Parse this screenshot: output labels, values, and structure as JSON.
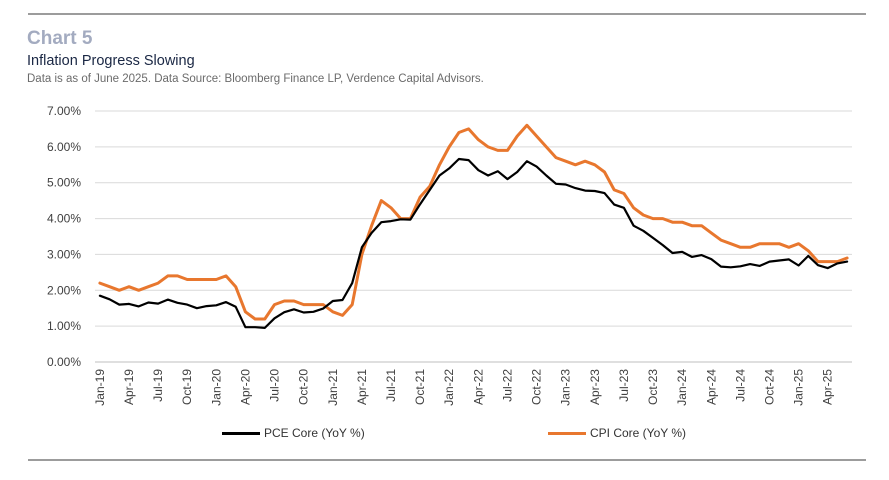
{
  "header": {
    "chart_number": "Chart 5",
    "title": "Inflation Progress Slowing",
    "subtitle": "Data is as of June 2025. Data Source: Bloomberg Finance LP, Verdence Capital Advisors."
  },
  "colors": {
    "pce": "#000000",
    "cpi": "#e8772e",
    "grid": "#d9d9d9",
    "axis_text": "#404040"
  },
  "chart_data": {
    "type": "line",
    "title": "",
    "xlabel": "",
    "ylabel": "",
    "ylim": [
      0,
      7
    ],
    "y_ticks": [
      "0.00%",
      "1.00%",
      "2.00%",
      "3.00%",
      "4.00%",
      "5.00%",
      "6.00%",
      "7.00%"
    ],
    "x_tick_labels": [
      "Jan-19",
      "Apr-19",
      "Jul-19",
      "Oct-19",
      "Jan-20",
      "Apr-20",
      "Jul-20",
      "Oct-20",
      "Jan-21",
      "Apr-21",
      "Jul-21",
      "Oct-21",
      "Jan-22",
      "Apr-22",
      "Jul-22",
      "Oct-22",
      "Jan-23",
      "Apr-23",
      "Jul-23",
      "Oct-23",
      "Jan-24",
      "Apr-24",
      "Jul-24",
      "Oct-24",
      "Jan-25",
      "Apr-25"
    ],
    "grid": true,
    "legend_position": "bottom",
    "x": [
      "Jan-19",
      "Feb-19",
      "Mar-19",
      "Apr-19",
      "May-19",
      "Jun-19",
      "Jul-19",
      "Aug-19",
      "Sep-19",
      "Oct-19",
      "Nov-19",
      "Dec-19",
      "Jan-20",
      "Feb-20",
      "Mar-20",
      "Apr-20",
      "May-20",
      "Jun-20",
      "Jul-20",
      "Aug-20",
      "Sep-20",
      "Oct-20",
      "Nov-20",
      "Dec-20",
      "Jan-21",
      "Feb-21",
      "Mar-21",
      "Apr-21",
      "May-21",
      "Jun-21",
      "Jul-21",
      "Aug-21",
      "Sep-21",
      "Oct-21",
      "Nov-21",
      "Dec-21",
      "Jan-22",
      "Feb-22",
      "Mar-22",
      "Apr-22",
      "May-22",
      "Jun-22",
      "Jul-22",
      "Aug-22",
      "Sep-22",
      "Oct-22",
      "Nov-22",
      "Dec-22",
      "Jan-23",
      "Feb-23",
      "Mar-23",
      "Apr-23",
      "May-23",
      "Jun-23",
      "Jul-23",
      "Aug-23",
      "Sep-23",
      "Oct-23",
      "Nov-23",
      "Dec-23",
      "Jan-24",
      "Feb-24",
      "Mar-24",
      "Apr-24",
      "May-24",
      "Jun-24",
      "Jul-24",
      "Aug-24",
      "Sep-24",
      "Oct-24",
      "Nov-24",
      "Dec-24",
      "Jan-25",
      "Feb-25",
      "Mar-25",
      "Apr-25",
      "May-25",
      "Jun-25"
    ],
    "series": [
      {
        "name": "PCE Core (YoY %)",
        "color": "#000000",
        "values": [
          1.85,
          1.75,
          1.6,
          1.62,
          1.55,
          1.66,
          1.63,
          1.74,
          1.65,
          1.6,
          1.5,
          1.56,
          1.58,
          1.67,
          1.54,
          0.97,
          0.97,
          0.95,
          1.22,
          1.39,
          1.47,
          1.38,
          1.4,
          1.49,
          1.7,
          1.73,
          2.2,
          3.2,
          3.6,
          3.9,
          3.93,
          3.98,
          3.97,
          4.4,
          4.8,
          5.2,
          5.4,
          5.66,
          5.63,
          5.35,
          5.2,
          5.32,
          5.1,
          5.3,
          5.6,
          5.45,
          5.2,
          4.97,
          4.95,
          4.85,
          4.78,
          4.77,
          4.71,
          4.39,
          4.3,
          3.8,
          3.66,
          3.46,
          3.26,
          3.04,
          3.07,
          2.93,
          2.98,
          2.87,
          2.66,
          2.64,
          2.67,
          2.73,
          2.68,
          2.8,
          2.83,
          2.86,
          2.69,
          2.96,
          2.7,
          2.62,
          2.75,
          2.8
        ]
      },
      {
        "name": "CPI Core (YoY %)",
        "color": "#e8772e",
        "values": [
          2.2,
          2.1,
          2.0,
          2.1,
          2.0,
          2.1,
          2.2,
          2.4,
          2.4,
          2.3,
          2.3,
          2.3,
          2.3,
          2.4,
          2.1,
          1.4,
          1.2,
          1.2,
          1.6,
          1.7,
          1.7,
          1.6,
          1.6,
          1.6,
          1.4,
          1.3,
          1.6,
          3.0,
          3.8,
          4.5,
          4.3,
          4.0,
          4.0,
          4.6,
          4.9,
          5.5,
          6.0,
          6.4,
          6.5,
          6.2,
          6.0,
          5.9,
          5.9,
          6.3,
          6.6,
          6.3,
          6.0,
          5.7,
          5.6,
          5.5,
          5.6,
          5.5,
          5.3,
          4.8,
          4.7,
          4.3,
          4.1,
          4.0,
          4.0,
          3.9,
          3.9,
          3.8,
          3.8,
          3.6,
          3.4,
          3.3,
          3.2,
          3.2,
          3.3,
          3.3,
          3.3,
          3.2,
          3.3,
          3.1,
          2.8,
          2.8,
          2.8,
          2.9
        ]
      }
    ]
  }
}
